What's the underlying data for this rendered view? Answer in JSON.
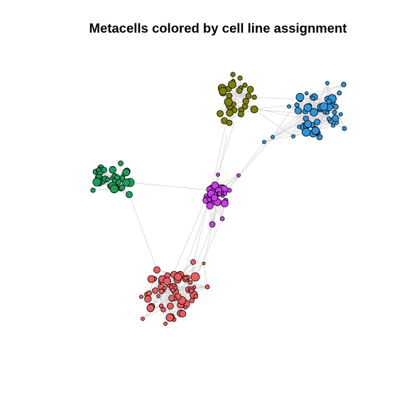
{
  "title": "Metacells colored by cell line assignment",
  "colors": {
    "olive": "#7f7f00",
    "blue": "#2b95dd",
    "green": "#19a05a",
    "magenta": "#cc3ee6",
    "red": "#f25b5b",
    "edge": "#cfcfcf",
    "outline": "#000000"
  },
  "chart_data": {
    "type": "network",
    "title": "Metacells colored by cell line assignment",
    "groups": [
      "olive",
      "blue",
      "green",
      "magenta",
      "red"
    ],
    "node_counts": {
      "olive": 28,
      "blue": 55,
      "green": 38,
      "magenta": 30,
      "red": 62
    }
  }
}
